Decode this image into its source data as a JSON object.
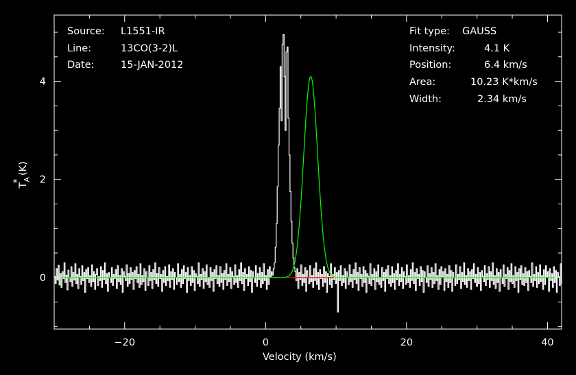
{
  "chart_data": {
    "type": "line",
    "title": "",
    "xlabel": "Velocity (km/s)",
    "ylabel": "T*A (K)",
    "xlim": [
      -30,
      42
    ],
    "ylim": [
      -1.05,
      5.35
    ],
    "x_ticks": [
      -20,
      0,
      20,
      40
    ],
    "y_ticks": [
      0,
      2,
      4
    ],
    "grid": false,
    "legend": "none",
    "info_left": {
      "source_label": "Source:",
      "source_value": "L1551-IR",
      "line_label": "Line:",
      "line_value": "13CO(3-2)L",
      "date_label": "Date:",
      "date_value": "15-JAN-2012"
    },
    "info_right": {
      "fit_type_label": "Fit type:",
      "fit_type_value": "GAUSS",
      "intensity_label": "Intensity:",
      "intensity_value": "4.1 K",
      "position_label": "Position:",
      "position_value": "6.4 km/s",
      "area_label": "Area:",
      "area_value": "10.23 K*km/s",
      "width_label": "Width:",
      "width_value": "2.34 km/s"
    },
    "fit": {
      "amplitude": 4.1,
      "center": 6.4,
      "fwhm": 2.34
    },
    "series": [
      {
        "color": "#ffffff",
        "kind": "spectrum",
        "x_start": -30,
        "x_step": 0.14,
        "values": [
          0.02,
          -0.12,
          0.18,
          -0.05,
          0.25,
          -0.15,
          0.08,
          -0.2,
          0.12,
          -0.02,
          0.3,
          -0.1,
          0.05,
          -0.25,
          0.15,
          0.0,
          -0.08,
          0.22,
          -0.18,
          0.1,
          -0.05,
          0.28,
          -0.12,
          0.06,
          -0.22,
          0.18,
          0.02,
          -0.14,
          0.24,
          -0.06,
          0.1,
          -0.3,
          0.16,
          -0.02,
          0.2,
          -0.1,
          0.04,
          -0.18,
          0.26,
          -0.08,
          0.12,
          -0.24,
          0.06,
          0.18,
          -0.16,
          0.02,
          -0.06,
          0.22,
          -0.2,
          0.14,
          -0.04,
          0.3,
          -0.12,
          0.08,
          -0.28,
          0.1,
          0.0,
          -0.1,
          0.2,
          -0.16,
          0.06,
          -0.02,
          0.16,
          -0.22,
          0.24,
          -0.08,
          0.04,
          -0.14,
          0.18,
          -0.3,
          0.12,
          0.02,
          -0.06,
          0.26,
          -0.18,
          0.08,
          -0.12,
          0.2,
          -0.04,
          0.1,
          -0.24,
          0.14,
          -0.02,
          0.22,
          -0.1,
          0.06,
          -0.2,
          0.28,
          -0.14,
          0.04,
          -0.08,
          0.18,
          -0.26,
          0.12,
          0.0,
          -0.16,
          0.24,
          -0.06,
          0.1,
          -0.22,
          0.16,
          -0.04,
          0.3,
          -0.12,
          0.08,
          -0.18,
          0.2,
          -0.02,
          0.06,
          -0.28,
          0.14,
          -0.1,
          0.22,
          -0.16,
          0.02,
          -0.06,
          0.26,
          -0.2,
          0.12,
          -0.04,
          0.18,
          -0.24,
          0.1,
          0.0,
          -0.14,
          0.28,
          -0.08,
          0.06,
          -0.2,
          0.16,
          -0.12,
          0.24,
          -0.02,
          0.1,
          -0.3,
          0.2,
          -0.06,
          0.04,
          -0.16,
          0.22,
          -0.1,
          0.14,
          -0.26,
          0.08,
          0.02,
          -0.12,
          0.3,
          -0.18,
          0.06,
          -0.04,
          0.18,
          -0.22,
          0.12,
          -0.08,
          0.26,
          -0.14,
          0.0,
          -0.2,
          0.2,
          -0.06,
          0.1,
          -0.28,
          0.16,
          -0.02,
          0.24,
          -0.12,
          0.04,
          -0.18,
          0.22,
          -0.1,
          0.08,
          -0.24,
          0.14,
          -0.04,
          0.28,
          -0.16,
          0.06,
          -0.08,
          0.2,
          -0.22,
          0.12,
          0.02,
          -0.14,
          0.26,
          -0.1,
          0.04,
          -0.2,
          0.16,
          -0.06,
          0.3,
          -0.12,
          0.1,
          -0.26,
          0.18,
          -0.02,
          0.06,
          -0.16,
          0.22,
          -0.08,
          0.14,
          -0.3,
          0.12,
          0.0,
          -0.1,
          0.24,
          -0.18,
          0.08,
          -0.04,
          0.2,
          -0.2,
          0.1,
          -0.12,
          0.28,
          -0.06,
          0.04,
          -0.24,
          0.16,
          -0.14,
          0.22,
          0.02,
          0.12,
          0.05,
          0.18,
          0.3,
          0.62,
          1.1,
          1.85,
          2.7,
          3.45,
          4.3,
          3.2,
          4.75,
          4.95,
          4.1,
          3.0,
          4.6,
          4.7,
          3.25,
          2.5,
          1.75,
          1.15,
          0.7,
          0.4,
          0.2,
          0.12,
          -0.06,
          0.18,
          -0.22,
          0.1,
          -0.04,
          0.26,
          -0.16,
          0.06,
          -0.1,
          0.2,
          -0.28,
          0.14,
          0.0,
          -0.12,
          0.24,
          -0.08,
          0.04,
          -0.2,
          0.18,
          -0.06,
          0.3,
          -0.14,
          0.1,
          -0.24,
          0.16,
          -0.02,
          0.06,
          -0.18,
          0.22,
          -0.1,
          0.12,
          -0.3,
          0.08,
          0.02,
          -0.14,
          0.28,
          -0.2,
          0.06,
          -0.04,
          0.2,
          -0.12,
          0.1,
          -0.7,
          0.14,
          -0.06,
          0.24,
          -0.16,
          0.04,
          -0.1,
          0.18,
          -0.22,
          0.12,
          0.0,
          -0.14,
          0.26,
          -0.08,
          0.06,
          -0.2,
          0.16,
          -0.04,
          0.3,
          -0.12,
          0.1,
          -0.26,
          0.2,
          -0.02,
          0.06,
          -0.18,
          0.22,
          -0.1,
          0.14,
          -0.3,
          0.08,
          0.02,
          -0.12,
          0.28,
          -0.16,
          0.06,
          -0.04,
          0.18,
          -0.24,
          0.12,
          -0.08,
          0.26,
          -0.14,
          0.0,
          -0.2,
          0.2,
          -0.06,
          0.1,
          -0.28,
          0.16,
          -0.02,
          0.24,
          -0.12,
          0.04,
          -0.18,
          0.22,
          -0.1,
          0.08,
          -0.24,
          0.14,
          -0.04,
          0.28,
          -0.16,
          0.06,
          -0.08,
          0.2,
          -0.22,
          0.12,
          0.02,
          -0.14,
          0.26,
          -0.1,
          0.04,
          -0.2,
          0.16,
          -0.06,
          0.3,
          -0.12,
          0.1,
          -0.26,
          0.18,
          -0.02,
          0.06,
          -0.16,
          0.22,
          -0.08,
          0.14,
          -0.3,
          0.12,
          0.0,
          -0.1,
          0.24,
          -0.18,
          0.08,
          -0.04,
          0.2,
          -0.2,
          0.1,
          -0.12,
          0.28,
          -0.06,
          0.04,
          -0.24,
          0.16,
          -0.14,
          0.22,
          0.02,
          0.12,
          -0.26,
          0.18,
          -0.08,
          0.06,
          -0.2,
          0.24,
          -0.1,
          0.14,
          -0.28,
          0.1,
          0.0,
          -0.16,
          0.26,
          -0.12,
          0.06,
          -0.04,
          0.22,
          -0.22,
          0.1,
          -0.08,
          0.3,
          -0.14,
          0.04,
          -0.2,
          0.18,
          -0.06,
          0.12,
          -0.24,
          0.16,
          -0.02,
          0.28,
          -0.1,
          0.06,
          -0.18,
          0.2,
          -0.12,
          0.1,
          -0.26,
          0.14,
          0.02,
          -0.08,
          0.24,
          -0.16,
          0.08,
          -0.04,
          0.22,
          -0.2,
          0.12,
          -0.06,
          0.3,
          -0.14,
          0.04,
          -0.22,
          0.18,
          -0.1,
          0.1,
          -0.28,
          0.16,
          0.0,
          -0.12,
          0.26,
          -0.18,
          0.06,
          -0.02,
          0.2,
          -0.24,
          0.14,
          -0.08,
          0.28,
          -0.12,
          0.04,
          -0.2,
          0.22,
          -0.06,
          0.1,
          -0.3,
          0.18,
          -0.04,
          0.24,
          -0.14,
          0.08,
          -0.16,
          0.2,
          -0.1,
          0.12,
          -0.26,
          0.14,
          0.02,
          -0.1,
          0.3,
          -0.18,
          0.06,
          -0.06,
          0.22,
          -0.2,
          0.1,
          -0.12,
          0.26,
          -0.08,
          0.04,
          -0.24,
          0.16,
          -0.14,
          0.24,
          0.0,
          0.12,
          -0.28,
          0.18,
          -0.06,
          0.08,
          -0.2,
          0.22,
          -0.1,
          0.14,
          -0.3,
          0.1,
          0.02,
          -0.16,
          0.28,
          -0.12,
          0.06,
          -0.04,
          0.2,
          -0.22,
          0.12,
          -0.08,
          0.3,
          -0.14,
          0.04,
          -0.2,
          0.18,
          -0.06,
          0.1,
          -0.26
        ]
      },
      {
        "color": "#00ff00",
        "kind": "gaussian-fit"
      },
      {
        "color": "#ff0000",
        "kind": "fit-baseline",
        "x_range": [
          3.0,
          9.7
        ],
        "value": 0
      }
    ]
  }
}
